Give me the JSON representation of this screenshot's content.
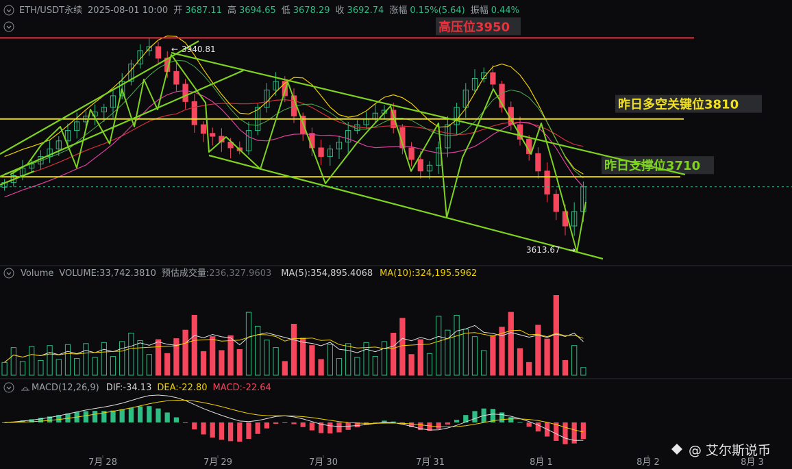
{
  "header": {
    "symbol": "ETH/USDT永续",
    "datetime": "2025-08-01 10:00",
    "open_label": "开",
    "open": "3687.11",
    "high_label": "高",
    "high": "3694.65",
    "low_label": "低",
    "low": "3678.29",
    "close_label": "收",
    "close": "3692.74",
    "change_label": "涨幅",
    "change": "0.15%(5.64)",
    "amp_label": "振幅",
    "amp": "0.44%"
  },
  "volume_header": {
    "title": "Volume",
    "volume": "VOLUME:33,742.3810",
    "est_label": "预估成交量:",
    "est": "236,327.9603",
    "ma5": "MA(5):354,895.4068",
    "ma10": "MA(10):324,195.5962"
  },
  "macd_header": {
    "title": "MACD(12,26,9)",
    "dif": "DIF:-34.13",
    "dea": "DEA:-22.80",
    "macd": "MACD:-22.64"
  },
  "annotations": {
    "resistance": "高压位3950",
    "key_level": "昨日多空关键位3810",
    "support": "昨日支撑位3710",
    "high_mark": "3940.81",
    "low_mark": "3613.67"
  },
  "watermark": "@ 艾尔斯说币",
  "colors": {
    "up": "#2ebd85",
    "down": "#f6465d",
    "red_line": "#e8313c",
    "yellow_line": "#f0e020",
    "trend_green": "#7ed321",
    "ma_yellow": "#f0d000",
    "ma_pink": "#e040a0",
    "ma_red": "#d0303a"
  },
  "chart_data": {
    "type": "candlestick",
    "symbol": "ETH/USDT永续",
    "x_ticks": [
      "7月 28",
      "7月 29",
      "7月 30",
      "7月 31",
      "8月 1",
      "8月 2",
      "8月 3"
    ],
    "price_levels": [
      {
        "label": "高压位3950",
        "value": 3950
      },
      {
        "label": "昨日多空关键位3810",
        "value": 3810
      },
      {
        "label": "昨日支撑位3710",
        "value": 3710
      }
    ],
    "marked_high": 3940.81,
    "marked_low": 3613.67,
    "last": {
      "open": 3687.11,
      "high": 3694.65,
      "low": 3678.29,
      "close": 3692.74
    },
    "closes": [
      3700,
      3712,
      3725,
      3732,
      3745,
      3758,
      3772,
      3790,
      3805,
      3815,
      3822,
      3830,
      3850,
      3875,
      3905,
      3928,
      3935,
      3915,
      3892,
      3870,
      3840,
      3800,
      3785,
      3780,
      3770,
      3760,
      3755,
      3790,
      3830,
      3860,
      3875,
      3850,
      3815,
      3785,
      3760,
      3745,
      3758,
      3770,
      3790,
      3800,
      3810,
      3820,
      3825,
      3795,
      3760,
      3740,
      3720,
      3730,
      3760,
      3800,
      3830,
      3860,
      3880,
      3890,
      3870,
      3830,
      3800,
      3775,
      3750,
      3720,
      3680,
      3650,
      3625,
      3650,
      3692.74
    ],
    "volume_ma5_last": 354895.4068,
    "volume_ma10_last": 324195.5962,
    "volume_last": 33742.381,
    "macd": {
      "dif": -34.13,
      "dea": -22.8,
      "macd": -22.64
    }
  }
}
